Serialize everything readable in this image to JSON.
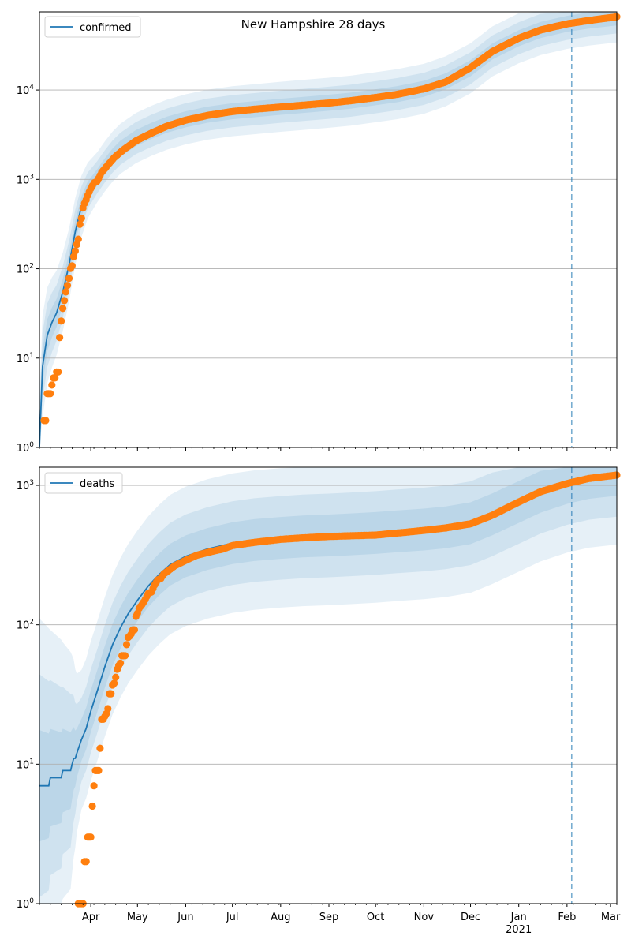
{
  "title": "New Hampshire 28 days",
  "colors": {
    "model_line": "#1f77b4",
    "band": "#1f77b4",
    "observed": "#ff7f0e",
    "grid": "#b0b0b0",
    "vline": "#1f77b4"
  },
  "chart_data": [
    {
      "type": "line",
      "panel": "top",
      "legend_label": "confirmed",
      "legend_position": "upper-left",
      "yscale": "log",
      "ylim": [
        1,
        75000
      ],
      "xlim": [
        "2020-02-28",
        "2021-03-05"
      ],
      "grid": "horizontal",
      "yticks": [
        {
          "value": 1,
          "label": "10^0"
        },
        {
          "value": 10,
          "label": "10^1"
        },
        {
          "value": 100,
          "label": "10^2"
        },
        {
          "value": 1000,
          "label": "10^3"
        },
        {
          "value": 10000,
          "label": "10^4"
        }
      ],
      "vline_date": "2021-02-04",
      "model": [
        [
          "2020-02-28",
          1
        ],
        [
          "2020-03-01",
          8
        ],
        [
          "2020-03-04",
          18
        ],
        [
          "2020-03-07",
          25
        ],
        [
          "2020-03-10",
          32
        ],
        [
          "2020-03-14",
          55
        ],
        [
          "2020-03-18",
          110
        ],
        [
          "2020-03-22",
          260
        ],
        [
          "2020-03-26",
          500
        ],
        [
          "2020-03-30",
          750
        ],
        [
          "2020-04-05",
          1050
        ],
        [
          "2020-04-10",
          1400
        ],
        [
          "2020-04-15",
          1800
        ],
        [
          "2020-04-20",
          2200
        ],
        [
          "2020-04-30",
          2900
        ],
        [
          "2020-05-10",
          3500
        ],
        [
          "2020-05-20",
          4100
        ],
        [
          "2020-06-01",
          4700
        ],
        [
          "2020-06-15",
          5300
        ],
        [
          "2020-07-01",
          5800
        ],
        [
          "2020-07-15",
          6100
        ],
        [
          "2020-08-01",
          6500
        ],
        [
          "2020-08-15",
          6800
        ],
        [
          "2020-09-01",
          7200
        ],
        [
          "2020-09-15",
          7600
        ],
        [
          "2020-10-01",
          8300
        ],
        [
          "2020-10-15",
          9000
        ],
        [
          "2020-11-01",
          10300
        ],
        [
          "2020-11-15",
          12500
        ],
        [
          "2020-12-01",
          17500
        ],
        [
          "2020-12-15",
          27000
        ],
        [
          "2021-01-01",
          38000
        ],
        [
          "2021-01-15",
          47000
        ],
        [
          "2021-02-01",
          55000
        ],
        [
          "2021-02-15",
          60000
        ],
        [
          "2021-03-05",
          65000
        ]
      ],
      "band_widths_log10": [
        0.28,
        0.18,
        0.09
      ],
      "band_start_widths_log10": [
        0.6,
        0.4,
        0.2
      ],
      "observed": [
        [
          "2020-03-02",
          2
        ],
        [
          "2020-03-03",
          2
        ],
        [
          "2020-03-04",
          4
        ],
        [
          "2020-03-06",
          4
        ],
        [
          "2020-03-07",
          5
        ],
        [
          "2020-03-08",
          6
        ],
        [
          "2020-03-09",
          6
        ],
        [
          "2020-03-10",
          7
        ],
        [
          "2020-03-11",
          7
        ],
        [
          "2020-03-12",
          17
        ],
        [
          "2020-03-13",
          26
        ],
        [
          "2020-03-14",
          36
        ],
        [
          "2020-03-15",
          44
        ],
        [
          "2020-03-16",
          55
        ],
        [
          "2020-03-17",
          65
        ],
        [
          "2020-03-18",
          78
        ],
        [
          "2020-03-19",
          101
        ],
        [
          "2020-03-20",
          108
        ],
        [
          "2020-03-21",
          137
        ],
        [
          "2020-03-22",
          158
        ],
        [
          "2020-03-23",
          187
        ],
        [
          "2020-03-24",
          214
        ],
        [
          "2020-03-25",
          314
        ],
        [
          "2020-03-26",
          367
        ],
        [
          "2020-03-27",
          479
        ],
        [
          "2020-03-28",
          540
        ],
        [
          "2020-03-29",
          590
        ],
        [
          "2020-03-30",
          660
        ],
        [
          "2020-04-01",
          790
        ],
        [
          "2020-04-03",
          910
        ],
        [
          "2020-04-05",
          950
        ],
        [
          "2020-04-08",
          1200
        ],
        [
          "2020-04-12",
          1450
        ],
        [
          "2020-04-16",
          1750
        ],
        [
          "2020-04-22",
          2150
        ],
        [
          "2020-04-30",
          2700
        ],
        [
          "2020-05-10",
          3300
        ],
        [
          "2020-05-20",
          3950
        ],
        [
          "2020-06-01",
          4600
        ],
        [
          "2020-06-15",
          5200
        ],
        [
          "2020-07-01",
          5750
        ],
        [
          "2020-07-15",
          6100
        ],
        [
          "2020-08-01",
          6450
        ],
        [
          "2020-08-15",
          6750
        ],
        [
          "2020-09-01",
          7150
        ],
        [
          "2020-09-15",
          7600
        ],
        [
          "2020-10-01",
          8250
        ],
        [
          "2020-10-15",
          8950
        ],
        [
          "2020-11-01",
          10300
        ],
        [
          "2020-11-15",
          12300
        ],
        [
          "2020-12-01",
          17800
        ],
        [
          "2020-12-15",
          27000
        ],
        [
          "2021-01-01",
          38000
        ],
        [
          "2021-01-15",
          47000
        ],
        [
          "2021-02-01",
          55000
        ],
        [
          "2021-02-15",
          60000
        ],
        [
          "2021-03-05",
          66000
        ]
      ]
    },
    {
      "type": "line",
      "panel": "bottom",
      "legend_label": "deaths",
      "legend_position": "upper-left",
      "yscale": "log",
      "ylim": [
        1,
        1350
      ],
      "xlim": [
        "2020-02-28",
        "2021-03-05"
      ],
      "grid": "horizontal",
      "yticks": [
        {
          "value": 1,
          "label": "10^0"
        },
        {
          "value": 10,
          "label": "10^1"
        },
        {
          "value": 100,
          "label": "10^2"
        },
        {
          "value": 1000,
          "label": "10^3"
        }
      ],
      "vline_date": "2021-02-04",
      "xticks": [
        {
          "date": "2020-04-01",
          "label": "Apr"
        },
        {
          "date": "2020-05-01",
          "label": "May"
        },
        {
          "date": "2020-06-01",
          "label": "Jun"
        },
        {
          "date": "2020-07-01",
          "label": "Jul"
        },
        {
          "date": "2020-08-01",
          "label": "Aug"
        },
        {
          "date": "2020-09-01",
          "label": "Sep"
        },
        {
          "date": "2020-10-01",
          "label": "Oct"
        },
        {
          "date": "2020-11-01",
          "label": "Nov"
        },
        {
          "date": "2020-12-01",
          "label": "Dec"
        },
        {
          "date": "2021-01-01",
          "label": "Jan",
          "sublabel": "2021"
        },
        {
          "date": "2021-02-01",
          "label": "Feb"
        },
        {
          "date": "2021-03-01",
          "label": "Mar"
        }
      ],
      "model": [
        [
          "2020-02-28",
          7
        ],
        [
          "2020-03-05",
          7
        ],
        [
          "2020-03-06",
          8
        ],
        [
          "2020-03-13",
          8
        ],
        [
          "2020-03-14",
          9
        ],
        [
          "2020-03-19",
          9
        ],
        [
          "2020-03-20",
          10
        ],
        [
          "2020-03-21",
          11
        ],
        [
          "2020-03-22",
          11
        ],
        [
          "2020-03-23",
          12
        ],
        [
          "2020-03-26",
          15
        ],
        [
          "2020-03-29",
          18
        ],
        [
          "2020-04-01",
          24
        ],
        [
          "2020-04-05",
          33
        ],
        [
          "2020-04-10",
          50
        ],
        [
          "2020-04-15",
          72
        ],
        [
          "2020-04-20",
          95
        ],
        [
          "2020-04-25",
          120
        ],
        [
          "2020-05-01",
          150
        ],
        [
          "2020-05-08",
          190
        ],
        [
          "2020-05-15",
          230
        ],
        [
          "2020-05-22",
          270
        ],
        [
          "2020-06-01",
          310
        ],
        [
          "2020-06-15",
          350
        ],
        [
          "2020-07-01",
          385
        ],
        [
          "2020-07-15",
          405
        ],
        [
          "2020-08-01",
          420
        ],
        [
          "2020-08-15",
          430
        ],
        [
          "2020-09-01",
          437
        ],
        [
          "2020-09-15",
          445
        ],
        [
          "2020-10-01",
          455
        ],
        [
          "2020-10-15",
          468
        ],
        [
          "2020-11-01",
          482
        ],
        [
          "2020-11-15",
          500
        ],
        [
          "2020-12-01",
          535
        ],
        [
          "2020-12-15",
          620
        ],
        [
          "2021-01-01",
          760
        ],
        [
          "2021-01-15",
          900
        ],
        [
          "2021-02-01",
          1040
        ],
        [
          "2021-02-15",
          1130
        ],
        [
          "2021-03-05",
          1190
        ]
      ],
      "band_widths_log10": [
        0.5,
        0.3,
        0.15
      ],
      "band_start_widths_log10": [
        1.2,
        0.8,
        0.4
      ],
      "observed": [
        [
          "2020-03-24",
          1
        ],
        [
          "2020-03-25",
          1
        ],
        [
          "2020-03-26",
          1
        ],
        [
          "2020-03-27",
          1
        ],
        [
          "2020-03-28",
          2
        ],
        [
          "2020-03-29",
          2
        ],
        [
          "2020-03-30",
          3
        ],
        [
          "2020-03-31",
          3
        ],
        [
          "2020-04-01",
          3
        ],
        [
          "2020-04-02",
          5
        ],
        [
          "2020-04-03",
          7
        ],
        [
          "2020-04-04",
          9
        ],
        [
          "2020-04-05",
          9
        ],
        [
          "2020-04-06",
          9
        ],
        [
          "2020-04-07",
          13
        ],
        [
          "2020-04-08",
          21
        ],
        [
          "2020-04-09",
          21
        ],
        [
          "2020-04-10",
          22
        ],
        [
          "2020-04-11",
          23
        ],
        [
          "2020-04-12",
          25
        ],
        [
          "2020-04-13",
          32
        ],
        [
          "2020-04-14",
          32
        ],
        [
          "2020-04-15",
          37
        ],
        [
          "2020-04-16",
          38
        ],
        [
          "2020-04-17",
          42
        ],
        [
          "2020-04-18",
          48
        ],
        [
          "2020-04-19",
          51
        ],
        [
          "2020-04-20",
          53
        ],
        [
          "2020-04-21",
          60
        ],
        [
          "2020-04-22",
          60
        ],
        [
          "2020-04-23",
          60
        ],
        [
          "2020-04-24",
          72
        ],
        [
          "2020-04-25",
          81
        ],
        [
          "2020-04-26",
          83
        ],
        [
          "2020-04-27",
          86
        ],
        [
          "2020-04-28",
          92
        ],
        [
          "2020-04-29",
          92
        ],
        [
          "2020-04-30",
          115
        ],
        [
          "2020-05-01",
          121
        ],
        [
          "2020-05-02",
          131
        ],
        [
          "2020-05-04",
          140
        ],
        [
          "2020-05-06",
          152
        ],
        [
          "2020-05-08",
          168
        ],
        [
          "2020-05-10",
          172
        ],
        [
          "2020-05-12",
          193
        ],
        [
          "2020-05-14",
          210
        ],
        [
          "2020-05-16",
          215
        ],
        [
          "2020-05-18",
          232
        ],
        [
          "2020-05-21",
          245
        ],
        [
          "2020-05-25",
          265
        ],
        [
          "2020-06-01",
          290
        ],
        [
          "2020-06-08",
          315
        ],
        [
          "2020-06-15",
          330
        ],
        [
          "2020-06-25",
          350
        ],
        [
          "2020-07-01",
          370
        ],
        [
          "2020-07-15",
          390
        ],
        [
          "2020-08-01",
          410
        ],
        [
          "2020-08-15",
          420
        ],
        [
          "2020-09-01",
          430
        ],
        [
          "2020-09-15",
          435
        ],
        [
          "2020-10-01",
          440
        ],
        [
          "2020-10-15",
          455
        ],
        [
          "2020-11-01",
          475
        ],
        [
          "2020-11-15",
          495
        ],
        [
          "2020-12-01",
          530
        ],
        [
          "2020-12-15",
          610
        ],
        [
          "2021-01-01",
          760
        ],
        [
          "2021-01-15",
          900
        ],
        [
          "2021-02-01",
          1030
        ],
        [
          "2021-02-15",
          1120
        ],
        [
          "2021-03-05",
          1185
        ]
      ]
    }
  ]
}
